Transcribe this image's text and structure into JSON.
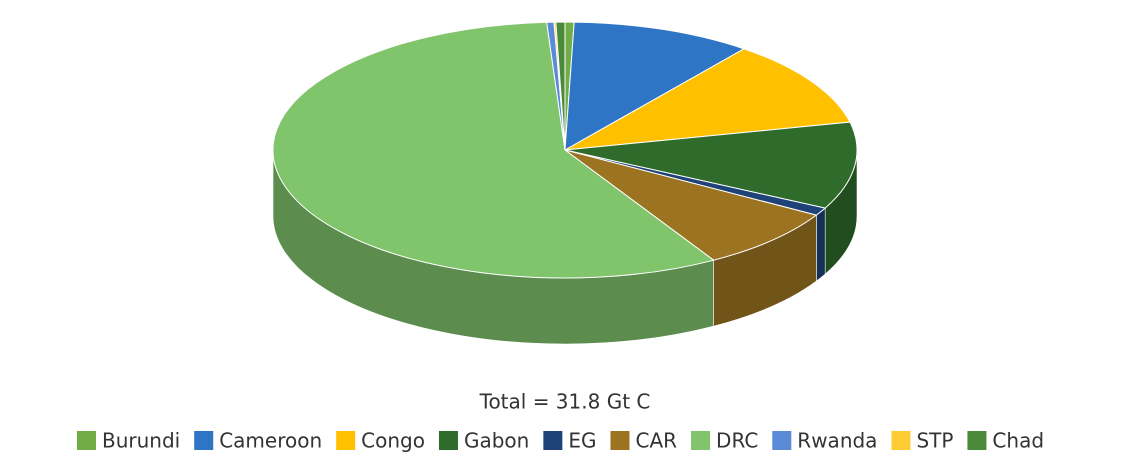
{
  "chart_data": {
    "type": "pie3d",
    "annotation": "Total = 31.8 Gt C",
    "categories": [
      "Burundi",
      "Cameroon",
      "Congo",
      "Gabon",
      "EG",
      "CAR",
      "DRC",
      "Rwanda",
      "STP",
      "Chad"
    ],
    "values": [
      0.5,
      10,
      11,
      11,
      1,
      8,
      57.5,
      0.4,
      0.1,
      0.5
    ],
    "colors": [
      "#70ad47",
      "#2e75c6",
      "#ffc000",
      "#2f6b2a",
      "#1f4379",
      "#9c7421",
      "#80c46c",
      "#5b8bd6",
      "#ffcc33",
      "#4a8a3a"
    ],
    "legend": "bottom"
  }
}
